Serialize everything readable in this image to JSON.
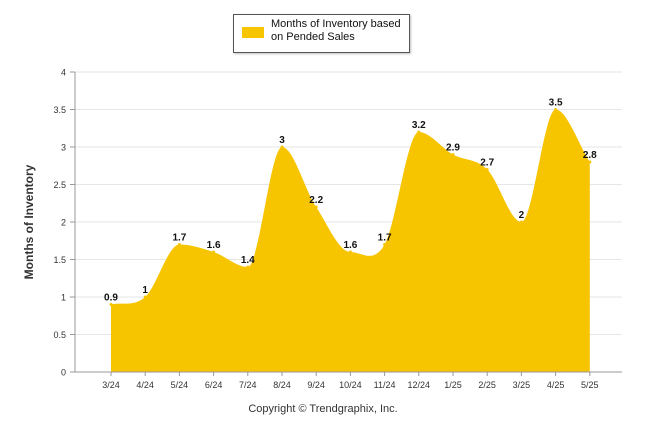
{
  "chart_data": {
    "type": "area",
    "categories": [
      "3/24",
      "4/24",
      "5/24",
      "6/24",
      "7/24",
      "8/24",
      "9/24",
      "10/24",
      "11/24",
      "12/24",
      "1/25",
      "2/25",
      "3/25",
      "4/25",
      "5/25"
    ],
    "series": [
      {
        "name": "Months of Inventory based on Pended Sales",
        "values": [
          0.9,
          1,
          1.7,
          1.6,
          1.4,
          3,
          2.2,
          1.6,
          1.7,
          3.2,
          2.9,
          2.7,
          2,
          3.5,
          2.8
        ],
        "data_labels": [
          "0.9",
          "1",
          "1.7",
          "1.6",
          "1.4",
          "3",
          "2.2",
          "1.6",
          "1.7",
          "3.2",
          "2.9",
          "2.7",
          "2",
          "3.5",
          "2.8"
        ]
      }
    ],
    "ylabel": "Months of Inventory",
    "xlabel": "",
    "ylim": [
      0,
      4
    ],
    "yticks": [
      "0",
      "0.5",
      "1",
      "1.5",
      "2",
      "2.5",
      "3",
      "3.5",
      "4"
    ],
    "grid": true,
    "legend_placement": "top-center"
  },
  "legend": {
    "label": "Months of Inventory based on Pended Sales"
  },
  "copyright": "Copyright © Trendgraphix, Inc.",
  "colors": {
    "area": "#F7C400",
    "grid": "#e6e6e6",
    "axis": "#999999"
  }
}
